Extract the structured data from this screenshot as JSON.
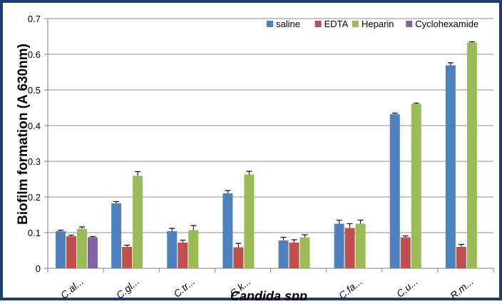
{
  "chart_data": {
    "type": "bar",
    "title": "",
    "xlabel": "Candida spp",
    "ylabel": "Biofilm formation  (A 630nm)",
    "ylim": [
      0,
      0.7
    ],
    "yticks": [
      "0",
      "0.1",
      "0.2",
      "0.3",
      "0.4",
      "0.5",
      "0.6",
      "0.7"
    ],
    "grid": true,
    "legend_position": "top-right",
    "categories": [
      "C.al...",
      "C.gl...",
      "C.tr...",
      "C.k...",
      "",
      "C.fa...",
      "C.u...",
      "R.m..."
    ],
    "series": [
      {
        "name": "saline",
        "color": "#4F81BD",
        "values": [
          0.104,
          0.182,
          0.104,
          0.21,
          0.078,
          0.125,
          0.432,
          0.569
        ],
        "errors": [
          0.003,
          0.005,
          0.008,
          0.008,
          0.009,
          0.01,
          0.003,
          0.007
        ]
      },
      {
        "name": "EDTA",
        "color": "#C0504D",
        "values": [
          0.09,
          0.06,
          0.072,
          0.059,
          0.072,
          0.113,
          0.087,
          0.06
        ],
        "errors": [
          0.003,
          0.005,
          0.007,
          0.011,
          0.008,
          0.012,
          0.004,
          0.007
        ]
      },
      {
        "name": "Heparin",
        "color": "#9BBB59",
        "values": [
          0.111,
          0.259,
          0.107,
          0.263,
          0.087,
          0.125,
          0.46,
          0.633
        ],
        "errors": [
          0.005,
          0.012,
          0.013,
          0.009,
          0.007,
          0.01,
          0.003,
          0.002
        ]
      },
      {
        "name": "Cyclohexamide",
        "color": "#8064A2",
        "values": [
          0.087,
          null,
          null,
          null,
          null,
          null,
          null,
          null
        ],
        "errors": [
          0.002,
          null,
          null,
          null,
          null,
          null,
          null,
          null
        ]
      }
    ]
  }
}
